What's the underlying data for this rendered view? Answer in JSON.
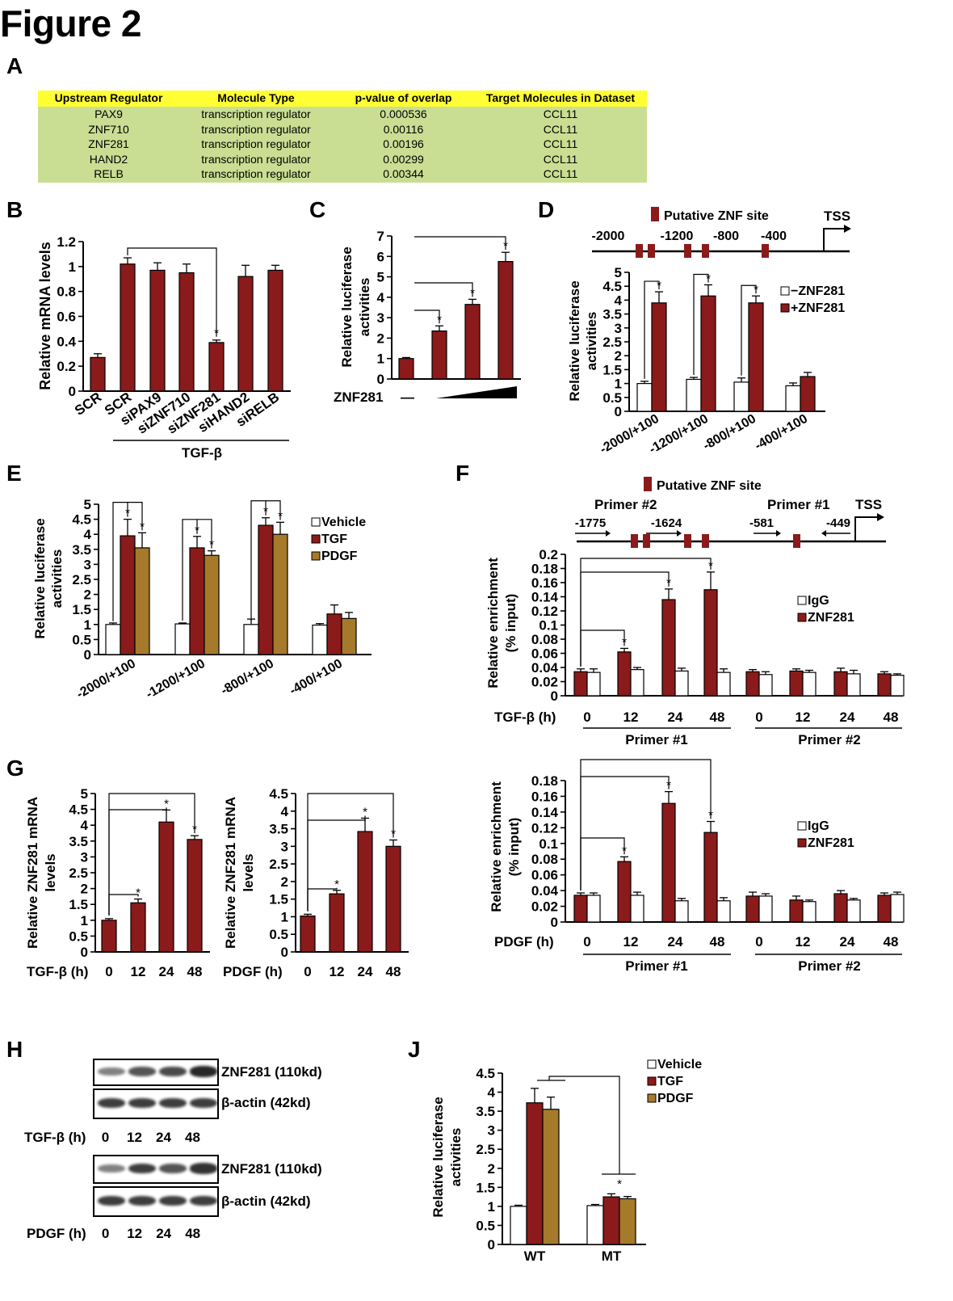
{
  "figure_title": "Figure 2",
  "panel_labels": {
    "A": "A",
    "B": "B",
    "C": "C",
    "D": "D",
    "E": "E",
    "F": "F",
    "G": "G",
    "H": "H",
    "J": "J"
  },
  "colors": {
    "dark_red": "#8b1a1a",
    "tan": "#a57a2a",
    "white_bar": "#ffffff",
    "table_header": "#ffff33",
    "table_body": "#c9de93"
  },
  "table_a": {
    "headers": [
      "Upstream Regulator",
      "Molecule Type",
      "p-value of overlap",
      "Target Molecules in Dataset"
    ],
    "rows": [
      [
        "PAX9",
        "transcription regulator",
        "0.000536",
        "CCL11"
      ],
      [
        "ZNF710",
        "transcription regulator",
        "0.00116",
        "CCL11"
      ],
      [
        "ZNF281",
        "transcription regulator",
        "0.00196",
        "CCL11"
      ],
      [
        "HAND2",
        "transcription regulator",
        "0.00299",
        "CCL11"
      ],
      [
        "RELB",
        "transcription regulator",
        "0.00344",
        "CCL11"
      ]
    ]
  },
  "panel_h": {
    "blot_labels": [
      "ZNF281 (110kd)",
      "β-actin (42kd)",
      "ZNF281 (110kd)",
      "β-actin (42kd)"
    ],
    "tgf_row_label": "TGF-β (h)",
    "pdgf_row_label": "PDGF (h)",
    "timepoints": [
      "0",
      "12",
      "24",
      "48"
    ],
    "band_intensity": {
      "tgf_znf281": [
        0.55,
        0.75,
        0.8,
        0.95
      ],
      "tgf_actin": [
        0.85,
        0.85,
        0.85,
        0.85
      ],
      "pdgf_znf281": [
        0.55,
        0.85,
        0.75,
        0.9
      ],
      "pdgf_actin": [
        0.85,
        0.85,
        0.85,
        0.85
      ]
    }
  },
  "chart_data": [
    {
      "id": "B",
      "type": "bar",
      "ylabel": "Relative mRNA levels",
      "ylim": [
        0,
        1.2
      ],
      "yticks": [
        "0",
        "0.2",
        "0.4",
        "0.6",
        "0.8",
        "1",
        "1.2"
      ],
      "categories": [
        "SCR",
        "SCR",
        "siPAX9",
        "siZNF710",
        "siZNF281",
        "siHAND2",
        "siRELB"
      ],
      "values": [
        0.27,
        1.02,
        0.97,
        0.95,
        0.39,
        0.92,
        0.97
      ],
      "errors": [
        0.03,
        0.05,
        0.06,
        0.07,
        0.02,
        0.09,
        0.04
      ],
      "group_label": "TGF-β",
      "significance": [
        {
          "from": 1,
          "to": 4,
          "mark": "*"
        }
      ]
    },
    {
      "id": "C",
      "type": "bar",
      "ylabel": "Relative luciferase activities",
      "ylim": [
        0,
        7
      ],
      "yticks": [
        "0",
        "1",
        "2",
        "3",
        "4",
        "5",
        "6",
        "7"
      ],
      "values": [
        1.0,
        2.35,
        3.65,
        5.75
      ],
      "errors": [
        0.05,
        0.25,
        0.25,
        0.45
      ],
      "x_treatment": "ZNF281",
      "x_first_label": "—",
      "significance": [
        {
          "from": 0,
          "to": 1,
          "mark": "*"
        },
        {
          "from": 0,
          "to": 2,
          "mark": "*"
        },
        {
          "from": 0,
          "to": 3,
          "mark": "*"
        }
      ]
    },
    {
      "id": "D",
      "type": "bar",
      "ylabel": "Relative luciferase activities",
      "ylim": [
        0,
        5
      ],
      "yticks": [
        "0",
        "0.5",
        "1",
        "1.5",
        "2",
        "2.5",
        "3",
        "3.5",
        "4",
        "4.5",
        "5"
      ],
      "categories": [
        "-2000/+100",
        "-1200/+100",
        "-800/+100",
        "-400/+100"
      ],
      "series": [
        {
          "name": "−ZNF281",
          "values": [
            1.0,
            1.15,
            1.05,
            0.92
          ],
          "errors": [
            0.08,
            0.07,
            0.15,
            0.1
          ]
        },
        {
          "name": "+ZNF281",
          "values": [
            3.9,
            4.15,
            3.9,
            1.25
          ],
          "errors": [
            0.4,
            0.4,
            0.25,
            0.15
          ]
        }
      ],
      "significance": [
        {
          "group": 0,
          "mark": "*"
        },
        {
          "group": 1,
          "mark": "*"
        },
        {
          "group": 2,
          "mark": "*"
        }
      ],
      "promoter_map": {
        "legend": "Putative ZNF site",
        "tss_label": "TSS",
        "ticks": [
          "-2000",
          "-1200",
          "-800",
          "-400"
        ]
      }
    },
    {
      "id": "E",
      "type": "bar",
      "ylabel": "Relative luciferase activities",
      "ylim": [
        0,
        5
      ],
      "yticks": [
        "0",
        "0.5",
        "1",
        "1.5",
        "2",
        "2.5",
        "3",
        "3.5",
        "4",
        "4.5",
        "5"
      ],
      "categories": [
        "-2000/+100",
        "-1200/+100",
        "-800/+100",
        "-400/+100"
      ],
      "series": [
        {
          "name": "Vehicle",
          "values": [
            1.0,
            1.02,
            1.0,
            0.98
          ],
          "errors": [
            0.05,
            0.03,
            0.18,
            0.05
          ]
        },
        {
          "name": "TGF",
          "values": [
            3.95,
            3.55,
            4.3,
            1.35
          ],
          "errors": [
            0.55,
            0.38,
            0.25,
            0.3
          ]
        },
        {
          "name": "PDGF",
          "values": [
            3.55,
            3.3,
            4.0,
            1.2
          ],
          "errors": [
            0.5,
            0.15,
            0.4,
            0.2
          ]
        }
      ],
      "significance": [
        {
          "group": 0,
          "mark": "*"
        },
        {
          "group": 1,
          "mark": "*"
        },
        {
          "group": 2,
          "mark": "*"
        }
      ]
    },
    {
      "id": "F-top",
      "type": "bar",
      "ylabel": "Relative enrichment (% input)",
      "ylim": [
        0,
        0.2
      ],
      "yticks": [
        "0",
        "0.02",
        "0.04",
        "0.06",
        "0.08",
        "0.1",
        "0.12",
        "0.14",
        "0.16",
        "0.18",
        "0.2"
      ],
      "treatment_label": "TGF-β (h)",
      "categories": [
        "0",
        "12",
        "24",
        "48",
        "0",
        "12",
        "24",
        "48"
      ],
      "groups": [
        "Primer #1",
        "Primer #2"
      ],
      "series": [
        {
          "name": "ZNF281",
          "values": [
            0.034,
            0.062,
            0.136,
            0.15,
            0.034,
            0.035,
            0.034,
            0.031
          ],
          "errors": [
            0.004,
            0.005,
            0.015,
            0.025,
            0.003,
            0.003,
            0.005,
            0.003
          ]
        },
        {
          "name": "IgG",
          "values": [
            0.033,
            0.037,
            0.035,
            0.033,
            0.03,
            0.033,
            0.031,
            0.029
          ],
          "errors": [
            0.005,
            0.003,
            0.004,
            0.005,
            0.004,
            0.003,
            0.005,
            0.002
          ]
        }
      ],
      "significance": [
        {
          "index": 1,
          "mark": "*"
        },
        {
          "index": 2,
          "mark": "*"
        },
        {
          "index": 3,
          "mark": "*"
        }
      ],
      "primer_map": {
        "legend": "Putative ZNF site",
        "primer2_label": "Primer #2",
        "primer1_label": "Primer #1",
        "tss_label": "TSS",
        "positions": [
          "-1775",
          "-1624",
          "-581",
          "-449"
        ]
      }
    },
    {
      "id": "F-bottom",
      "type": "bar",
      "ylabel": "Relative enrichment (% input)",
      "ylim": [
        0,
        0.18
      ],
      "yticks": [
        "0",
        "0.02",
        "0.04",
        "0.06",
        "0.08",
        "0.1",
        "0.12",
        "0.14",
        "0.16",
        "0.18"
      ],
      "treatment_label": "PDGF (h)",
      "categories": [
        "0",
        "12",
        "24",
        "48",
        "0",
        "12",
        "24",
        "48"
      ],
      "groups": [
        "Primer #1",
        "Primer #2"
      ],
      "series": [
        {
          "name": "ZNF281",
          "values": [
            0.034,
            0.077,
            0.151,
            0.114,
            0.033,
            0.028,
            0.036,
            0.034
          ],
          "errors": [
            0.003,
            0.006,
            0.015,
            0.014,
            0.005,
            0.005,
            0.004,
            0.003
          ]
        },
        {
          "name": "IgG",
          "values": [
            0.034,
            0.034,
            0.027,
            0.027,
            0.033,
            0.026,
            0.028,
            0.035
          ],
          "errors": [
            0.003,
            0.004,
            0.003,
            0.004,
            0.003,
            0.002,
            0.002,
            0.003
          ]
        }
      ],
      "significance": [
        {
          "index": 1,
          "mark": "*"
        },
        {
          "index": 2,
          "mark": "*"
        },
        {
          "index": 3,
          "mark": "*"
        }
      ]
    },
    {
      "id": "G-left",
      "type": "bar",
      "ylabel": "Relative ZNF281 mRNA levels",
      "ylim": [
        0,
        5
      ],
      "yticks": [
        "0",
        "0.5",
        "1",
        "1.5",
        "2",
        "2.5",
        "3",
        "3.5",
        "4",
        "4.5",
        "5"
      ],
      "treatment_label": "TGF-β (h)",
      "categories": [
        "0",
        "12",
        "24",
        "48"
      ],
      "values": [
        1.0,
        1.55,
        4.1,
        3.55
      ],
      "errors": [
        0.05,
        0.12,
        0.38,
        0.12
      ],
      "significance": [
        {
          "from": 0,
          "to": 1,
          "mark": "*"
        },
        {
          "from": 0,
          "to": 2,
          "mark": "*"
        },
        {
          "from": 0,
          "to": 3,
          "mark": "*"
        }
      ]
    },
    {
      "id": "G-right",
      "type": "bar",
      "ylabel": "Relative ZNF281 mRNA levels",
      "ylim": [
        0,
        4.5
      ],
      "yticks": [
        "0",
        "0.5",
        "1",
        "1.5",
        "2",
        "2.5",
        "3",
        "3.5",
        "4",
        "4.5"
      ],
      "treatment_label": "PDGF (h)",
      "categories": [
        "0",
        "12",
        "24",
        "48"
      ],
      "values": [
        1.02,
        1.65,
        3.42,
        3.0
      ],
      "errors": [
        0.05,
        0.1,
        0.38,
        0.18
      ],
      "significance": [
        {
          "from": 0,
          "to": 1,
          "mark": "*"
        },
        {
          "from": 0,
          "to": 2,
          "mark": "*"
        },
        {
          "from": 0,
          "to": 3,
          "mark": "*"
        }
      ]
    },
    {
      "id": "J",
      "type": "bar",
      "ylabel": "Relative luciferase activities",
      "ylim": [
        0,
        4.5
      ],
      "yticks": [
        "0",
        "0.5",
        "1",
        "1.5",
        "2",
        "2.5",
        "3",
        "3.5",
        "4",
        "4.5"
      ],
      "categories": [
        "WT",
        "MT"
      ],
      "series": [
        {
          "name": "Vehicle",
          "values": [
            1.0,
            1.02
          ],
          "errors": [
            0.03,
            0.03
          ]
        },
        {
          "name": "TGF",
          "values": [
            3.72,
            1.25
          ],
          "errors": [
            0.38,
            0.08
          ]
        },
        {
          "name": "PDGF",
          "values": [
            3.55,
            1.2
          ],
          "errors": [
            0.32,
            0.06
          ]
        }
      ],
      "significance_mark": "*"
    }
  ]
}
